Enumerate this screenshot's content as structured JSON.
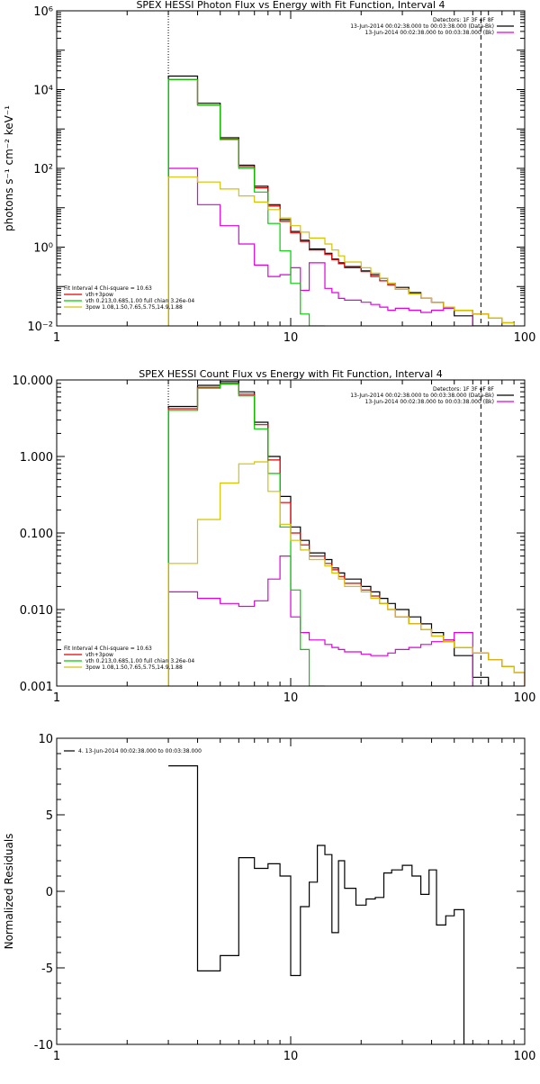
{
  "chart_data": [
    {
      "type": "line",
      "title": "SPEX HESSI Photon Flux vs Energy with Fit Function, Interval 4",
      "ylabel": "photons s⁻¹ cm⁻² keV⁻¹",
      "xlabel": "",
      "x_scale": "log",
      "y_scale": "log",
      "xlim": [
        1,
        100
      ],
      "ylim": [
        0.01,
        1000000
      ],
      "x_ticks": [
        {
          "v": 1,
          "label": "1"
        },
        {
          "v": 10,
          "label": "10"
        },
        {
          "v": 100,
          "label": "100"
        }
      ],
      "y_ticks": [
        {
          "v": 0.01,
          "label": "10⁻²"
        },
        {
          "v": 1,
          "label": "10⁰"
        },
        {
          "v": 100,
          "label": "10²"
        },
        {
          "v": 10000,
          "label": "10⁴"
        },
        {
          "v": 1000000,
          "label": "10⁶"
        }
      ],
      "legend_top_right": [
        {
          "text": "Detectors: 1F 3F 4F 8F",
          "color": ""
        },
        {
          "text": "13-Jun-2014 00:02:38.000 to 00:03:38.000 (Data-Bk)",
          "color": "#000000"
        },
        {
          "text": "13-Jun-2014 00:02:38.000 to 00:03:38.000 (Bk)",
          "color": "#e000e0"
        }
      ],
      "legend_bottom_left": [
        {
          "text": "Fit Interval 4   Chi-square = 10.63",
          "color": ""
        },
        {
          "text": "vth+3pow",
          "color": "#e00000"
        },
        {
          "text": "vth 0.213,0.685,1.00  full chian 3.26e-04",
          "color": "#00cc00"
        },
        {
          "text": "3pow 1.08,1.50,7.65,5.75,14.9,1.88",
          "color": "#d4c400"
        }
      ],
      "vlines": [
        {
          "x": 3.0,
          "style": "dotted"
        },
        {
          "x": 65,
          "style": "dashed"
        }
      ],
      "edges": [
        3,
        4,
        5,
        6,
        7,
        8,
        9,
        10,
        11,
        12,
        14,
        15,
        16,
        17,
        20,
        22,
        24,
        26,
        28,
        32,
        36,
        40,
        45,
        50,
        60,
        70,
        80,
        90
      ],
      "series": [
        {
          "name": "Data-Bk",
          "color": "#000000",
          "values": [
            22000,
            4500,
            600,
            120,
            35,
            12,
            5.0,
            2.5,
            1.5,
            0.9,
            0.7,
            0.5,
            0.4,
            0.32,
            0.25,
            0.2,
            0.16,
            0.12,
            0.095,
            0.07,
            0.05,
            0.04,
            0.03,
            0.018,
            0.01
          ]
        },
        {
          "name": "Bk",
          "color": "#e000e0",
          "values": [
            100,
            12,
            3.5,
            1.2,
            0.35,
            0.18,
            0.2,
            0.3,
            0.08,
            0.4,
            0.09,
            0.07,
            0.05,
            0.045,
            0.04,
            0.035,
            0.03,
            0.025,
            0.028,
            0.025,
            0.022,
            0.025,
            0.028,
            0.025
          ]
        },
        {
          "name": "vth+3pow",
          "color": "#e00000",
          "values": [
            18000,
            4000,
            550,
            110,
            32,
            11,
            4.5,
            2.3,
            1.4,
            0.85,
            0.65,
            0.48,
            0.38,
            0.3,
            0.24,
            0.18,
            0.14,
            0.11,
            0.085,
            0.065,
            0.05,
            0.04,
            0.03,
            0.025,
            0.02,
            0.016,
            0.012
          ]
        },
        {
          "name": "vth",
          "color": "#00cc00",
          "values": [
            18000,
            4000,
            540,
            100,
            25,
            4.0,
            0.8,
            0.12,
            0.02,
            0.01
          ]
        },
        {
          "name": "3pow",
          "color": "#d4c400",
          "values": [
            60,
            45,
            30,
            20,
            14,
            9.0,
            5.5,
            3.5,
            2.4,
            1.7,
            1.2,
            0.85,
            0.6,
            0.42,
            0.3,
            0.22,
            0.16,
            0.12,
            0.085,
            0.065,
            0.05,
            0.04,
            0.03,
            0.025,
            0.02,
            0.016,
            0.012
          ]
        }
      ]
    },
    {
      "type": "line",
      "title": "SPEX HESSI Count Flux vs Energy with Fit Function, Interval 4",
      "ylabel": "",
      "xlabel": "",
      "x_scale": "log",
      "y_scale": "log",
      "xlim": [
        1,
        100
      ],
      "ylim": [
        0.001,
        10
      ],
      "x_ticks": [
        {
          "v": 1,
          "label": "1"
        },
        {
          "v": 10,
          "label": "10"
        },
        {
          "v": 100,
          "label": "100"
        }
      ],
      "y_ticks": [
        {
          "v": 0.001,
          "label": "0.001"
        },
        {
          "v": 0.01,
          "label": "0.010"
        },
        {
          "v": 0.1,
          "label": "0.100"
        },
        {
          "v": 1,
          "label": "1.000"
        },
        {
          "v": 10,
          "label": "10.000"
        }
      ],
      "legend_top_right": [
        {
          "text": "Detectors: 1F 3F 4F 8F",
          "color": ""
        },
        {
          "text": "13-Jun-2014 00:02:38.000 to 00:03:38.000 (Data-Bk)",
          "color": "#000000"
        },
        {
          "text": "13-Jun-2014 00:02:38.000 to 00:03:38.000 (Bk)",
          "color": "#e000e0"
        }
      ],
      "legend_bottom_left": [
        {
          "text": "Fit Interval 4   Chi-square = 10.63",
          "color": ""
        },
        {
          "text": "vth+3pow",
          "color": "#e00000"
        },
        {
          "text": "vth 0.213,0.685,1.00  full chian 3.26e-04",
          "color": "#00cc00"
        },
        {
          "text": "3pow 1.08,1.50,7.65,5.75,14.9,1.88",
          "color": "#d4c400"
        }
      ],
      "vlines": [
        {
          "x": 3.0,
          "style": "dotted"
        },
        {
          "x": 65,
          "style": "dashed"
        }
      ],
      "edges": [
        3,
        4,
        5,
        6,
        7,
        8,
        9,
        10,
        11,
        12,
        14,
        15,
        16,
        17,
        20,
        22,
        24,
        26,
        28,
        32,
        36,
        40,
        45,
        50,
        60,
        70,
        80,
        90,
        100
      ],
      "series": [
        {
          "name": "Data-Bk",
          "color": "#000000",
          "values": [
            4.5,
            8.5,
            9.5,
            7.0,
            2.8,
            1.0,
            0.3,
            0.12,
            0.08,
            0.055,
            0.045,
            0.035,
            0.03,
            0.025,
            0.02,
            0.017,
            0.014,
            0.012,
            0.01,
            0.008,
            0.0065,
            0.005,
            0.004,
            0.0025,
            0.0013
          ]
        },
        {
          "name": "Bk",
          "color": "#e000e0",
          "values": [
            0.017,
            0.014,
            0.012,
            0.011,
            0.013,
            0.025,
            0.05,
            0.008,
            0.005,
            0.004,
            0.0035,
            0.0032,
            0.003,
            0.0028,
            0.0026,
            0.0025,
            0.0025,
            0.0027,
            0.003,
            0.0032,
            0.0035,
            0.0038,
            0.004,
            0.005
          ]
        },
        {
          "name": "vth+3pow",
          "color": "#e00000",
          "values": [
            4.2,
            8.0,
            9.0,
            6.5,
            2.6,
            0.9,
            0.25,
            0.1,
            0.07,
            0.05,
            0.04,
            0.033,
            0.027,
            0.022,
            0.018,
            0.015,
            0.012,
            0.01,
            0.008,
            0.0065,
            0.0055,
            0.0045,
            0.0038,
            0.0032,
            0.0027,
            0.0022,
            0.0018,
            0.0015
          ]
        },
        {
          "name": "vth",
          "color": "#00cc00",
          "values": [
            4.0,
            7.8,
            8.8,
            6.2,
            2.3,
            0.6,
            0.12,
            0.018,
            0.003,
            0.001
          ]
        },
        {
          "name": "3pow",
          "color": "#d4c400",
          "values": [
            0.04,
            0.15,
            0.45,
            0.8,
            0.85,
            0.35,
            0.13,
            0.08,
            0.06,
            0.045,
            0.037,
            0.03,
            0.025,
            0.02,
            0.017,
            0.014,
            0.012,
            0.01,
            0.008,
            0.0065,
            0.0055,
            0.0045,
            0.0038,
            0.0032,
            0.0027,
            0.0022,
            0.0018,
            0.0015
          ]
        }
      ]
    },
    {
      "type": "line",
      "title": "",
      "ylabel": "Normalized Residuals",
      "xlabel": "",
      "x_scale": "log",
      "y_scale": "linear",
      "xlim": [
        1,
        100
      ],
      "ylim": [
        -10,
        10
      ],
      "x_ticks": [
        {
          "v": 1,
          "label": "1"
        },
        {
          "v": 10,
          "label": "10"
        },
        {
          "v": 100,
          "label": "100"
        }
      ],
      "y_ticks": [
        {
          "v": -10,
          "label": "-10"
        },
        {
          "v": -5,
          "label": "-5"
        },
        {
          "v": 0,
          "label": "0"
        },
        {
          "v": 5,
          "label": "5"
        },
        {
          "v": 10,
          "label": "10"
        }
      ],
      "legend_top_left": [
        {
          "text": "4. 13-Jun-2014 00:02:38.000 to 00:03:38.000",
          "color": "#000000"
        }
      ],
      "edges": [
        3,
        4,
        5,
        6,
        7,
        8,
        9,
        10,
        11,
        12,
        13,
        14,
        15,
        16,
        17,
        19,
        21,
        23,
        25,
        27,
        30,
        33,
        36,
        39,
        42,
        46,
        50,
        55,
        60,
        65
      ],
      "series": [
        {
          "name": "4. 13-Jun-2014 00:02:38.000 to 00:03:38.000",
          "color": "#000000",
          "values": [
            8.2,
            -5.2,
            -4.2,
            2.2,
            1.5,
            1.8,
            1.0,
            -5.5,
            -1.0,
            0.6,
            3.0,
            2.4,
            -2.7,
            2.0,
            0.2,
            -0.9,
            -0.5,
            -0.4,
            1.2,
            1.4,
            1.7,
            1.0,
            -0.2,
            1.4,
            -2.2,
            -1.6,
            -1.2,
            -10,
            -10
          ]
        }
      ]
    }
  ]
}
